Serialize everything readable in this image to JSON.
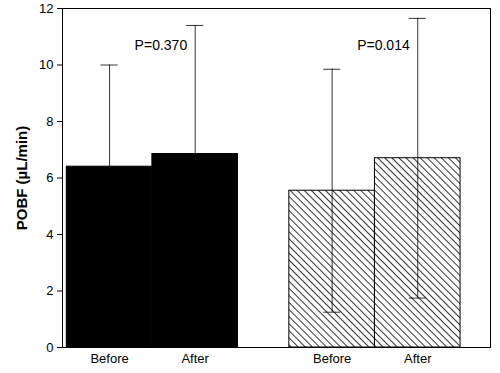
{
  "chart_data": {
    "type": "bar",
    "y_label": "POBF (µL/min)",
    "categories": [
      "Before",
      "After",
      "Before",
      "After"
    ],
    "values": [
      6.4,
      6.85,
      5.55,
      6.7
    ],
    "errors": [
      3.6,
      4.55,
      4.3,
      4.95
    ],
    "colors": [
      "#000000",
      "#000000",
      "hatched",
      "hatched"
    ],
    "annotations": [
      "P=0.370",
      "P=0.014"
    ],
    "ylim": [
      0,
      12
    ],
    "yticks": [
      0,
      2,
      4,
      6,
      8,
      10,
      12
    ]
  }
}
